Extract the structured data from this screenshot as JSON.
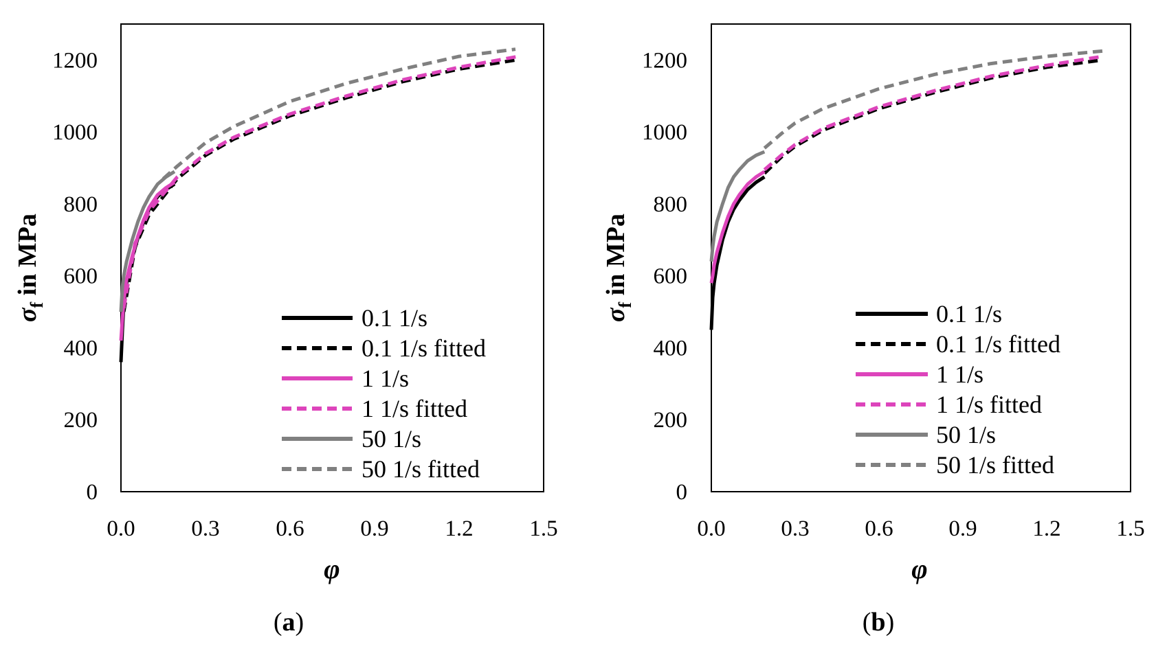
{
  "chart_data": [
    {
      "type": "line",
      "panel_label": "(a)",
      "panel_letter": "a",
      "xlabel": "φ",
      "ylabel_symbol": "σ",
      "ylabel_subscript": "f",
      "ylabel_text": " in MPa",
      "xlim": [
        0.0,
        1.5
      ],
      "ylim": [
        0,
        1300
      ],
      "xticks": [
        "0.0",
        "0.3",
        "0.6",
        "0.9",
        "1.2",
        "1.5"
      ],
      "xtick_values": [
        0.0,
        0.3,
        0.6,
        0.9,
        1.2,
        1.5
      ],
      "yticks": [
        "0",
        "200",
        "400",
        "600",
        "800",
        "1000",
        "1200"
      ],
      "ytick_values": [
        0,
        200,
        400,
        600,
        800,
        1000,
        1200
      ],
      "legend_position": "bottom-right",
      "series": [
        {
          "name": "0.1 1/s",
          "style": "solid",
          "color": "#000000",
          "x": [
            0.0,
            0.005,
            0.01,
            0.02,
            0.04,
            0.06,
            0.08,
            0.1,
            0.13,
            0.16,
            0.19
          ],
          "y": [
            360,
            450,
            520,
            580,
            650,
            705,
            750,
            785,
            820,
            840,
            855
          ]
        },
        {
          "name": "0.1 1/s fitted",
          "style": "dashed",
          "color": "#000000",
          "x": [
            0.01,
            0.05,
            0.1,
            0.2,
            0.3,
            0.4,
            0.6,
            0.8,
            1.0,
            1.2,
            1.4
          ],
          "y": [
            500,
            680,
            770,
            870,
            935,
            980,
            1045,
            1095,
            1140,
            1175,
            1200
          ]
        },
        {
          "name": "1 1/s",
          "style": "solid",
          "color": "#dd44bb",
          "x": [
            0.0,
            0.005,
            0.01,
            0.02,
            0.04,
            0.06,
            0.08,
            0.1,
            0.13,
            0.16,
            0.19
          ],
          "y": [
            420,
            480,
            530,
            590,
            655,
            710,
            755,
            790,
            825,
            845,
            860
          ]
        },
        {
          "name": "1 1/s fitted",
          "style": "dashed",
          "color": "#dd44bb",
          "x": [
            0.01,
            0.05,
            0.1,
            0.2,
            0.3,
            0.4,
            0.6,
            0.8,
            1.0,
            1.2,
            1.41
          ],
          "y": [
            510,
            690,
            780,
            875,
            940,
            985,
            1050,
            1100,
            1145,
            1180,
            1210
          ]
        },
        {
          "name": "50 1/s",
          "style": "solid",
          "color": "#808080",
          "x": [
            0.0,
            0.005,
            0.01,
            0.02,
            0.04,
            0.06,
            0.08,
            0.1,
            0.13,
            0.16,
            0.19
          ],
          "y": [
            500,
            570,
            600,
            640,
            700,
            750,
            790,
            820,
            855,
            875,
            890
          ]
        },
        {
          "name": "50 1/s fitted",
          "style": "dashed",
          "color": "#808080",
          "x": [
            0.15,
            0.2,
            0.3,
            0.4,
            0.6,
            0.8,
            1.0,
            1.2,
            1.4
          ],
          "y": [
            870,
            905,
            970,
            1015,
            1085,
            1135,
            1175,
            1210,
            1230
          ]
        }
      ]
    },
    {
      "type": "line",
      "panel_label": "(b)",
      "panel_letter": "b",
      "xlabel": "φ",
      "ylabel_symbol": "σ",
      "ylabel_subscript": "f",
      "ylabel_text": " in MPa",
      "xlim": [
        0.0,
        1.5
      ],
      "ylim": [
        0,
        1300
      ],
      "xticks": [
        "0.0",
        "0.3",
        "0.6",
        "0.9",
        "1.2",
        "1.5"
      ],
      "xtick_values": [
        0.0,
        0.3,
        0.6,
        0.9,
        1.2,
        1.5
      ],
      "yticks": [
        "0",
        "200",
        "400",
        "600",
        "800",
        "1000",
        "1200"
      ],
      "ytick_values": [
        0,
        200,
        400,
        600,
        800,
        1000,
        1200
      ],
      "legend_position": "bottom-right",
      "series": [
        {
          "name": "0.1 1/s",
          "style": "solid",
          "color": "#000000",
          "x": [
            0.0,
            0.005,
            0.01,
            0.02,
            0.04,
            0.06,
            0.08,
            0.1,
            0.13,
            0.16,
            0.19
          ],
          "y": [
            450,
            540,
            580,
            630,
            700,
            750,
            785,
            810,
            840,
            860,
            875
          ]
        },
        {
          "name": "0.1 1/s fitted",
          "style": "dashed",
          "color": "#000000",
          "x": [
            0.19,
            0.25,
            0.3,
            0.4,
            0.6,
            0.8,
            1.0,
            1.2,
            1.4
          ],
          "y": [
            885,
            930,
            960,
            1005,
            1065,
            1110,
            1150,
            1180,
            1200
          ]
        },
        {
          "name": "1 1/s",
          "style": "solid",
          "color": "#dd44bb",
          "x": [
            0.0,
            0.005,
            0.01,
            0.02,
            0.04,
            0.06,
            0.08,
            0.1,
            0.13,
            0.16,
            0.19
          ],
          "y": [
            580,
            600,
            630,
            665,
            720,
            765,
            800,
            825,
            855,
            875,
            890
          ]
        },
        {
          "name": "1 1/s fitted",
          "style": "dashed",
          "color": "#dd44bb",
          "x": [
            0.19,
            0.25,
            0.3,
            0.4,
            0.6,
            0.8,
            1.0,
            1.2,
            1.4
          ],
          "y": [
            895,
            935,
            965,
            1010,
            1070,
            1115,
            1155,
            1185,
            1210
          ]
        },
        {
          "name": "50 1/s",
          "style": "solid",
          "color": "#808080",
          "x": [
            0.0,
            0.005,
            0.01,
            0.02,
            0.04,
            0.06,
            0.08,
            0.1,
            0.13,
            0.16,
            0.19
          ],
          "y": [
            640,
            680,
            710,
            750,
            800,
            845,
            875,
            895,
            920,
            935,
            945
          ]
        },
        {
          "name": "50 1/s fitted",
          "style": "dashed",
          "color": "#808080",
          "x": [
            0.19,
            0.25,
            0.3,
            0.4,
            0.6,
            0.8,
            1.0,
            1.2,
            1.4
          ],
          "y": [
            955,
            995,
            1025,
            1065,
            1120,
            1160,
            1190,
            1210,
            1225
          ]
        }
      ]
    }
  ]
}
